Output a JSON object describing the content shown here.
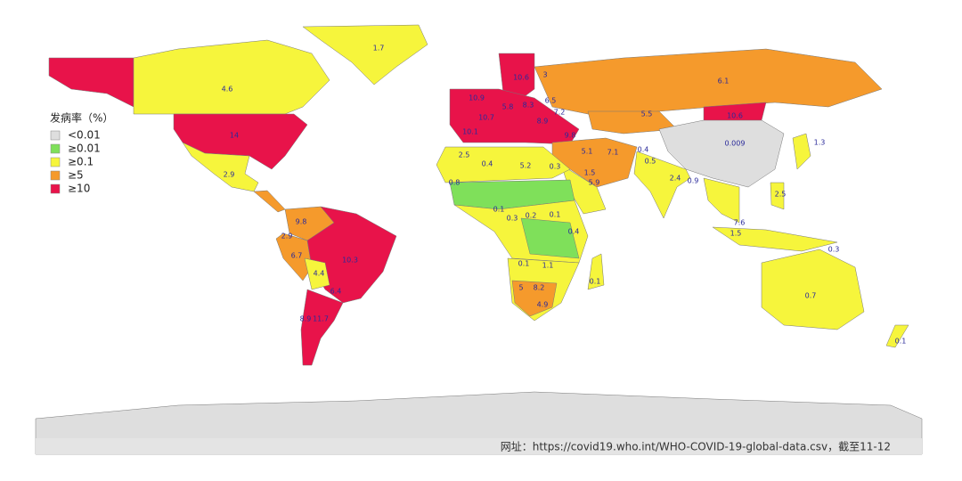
{
  "legend": {
    "title": "发病率（%）",
    "items": [
      {
        "label": "<0.01",
        "color": "#dedede"
      },
      {
        "label": "≥0.01",
        "color": "#7fe05a"
      },
      {
        "label": "≥0.1",
        "color": "#f6f53c"
      },
      {
        "label": "≥5",
        "color": "#f59a2c"
      },
      {
        "label": "≥10",
        "color": "#e8134a"
      }
    ]
  },
  "labels": [
    1.7,
    4.6,
    14,
    2.9,
    9.8,
    2.9,
    6.7,
    10.3,
    4.4,
    6.4,
    8.9,
    11.7,
    6.1,
    5.5,
    10.6,
    0.009,
    1.3,
    7.1,
    5.1,
    1.5,
    5.9,
    2.4,
    0.4,
    0.5,
    0.9,
    2.5,
    7.6,
    1.5,
    0.3,
    0.7,
    0.1,
    2.5,
    0.4,
    5.2,
    0.3,
    0.8,
    0.1,
    0.3,
    0.2,
    0.1,
    0.4,
    0.1,
    1.1,
    5,
    8.2,
    4.9,
    0.1,
    10.9,
    10.6,
    3,
    5.8,
    8.3,
    6.5,
    10.7,
    7.2,
    8.9,
    10.1,
    9.8
  ],
  "footer": "网址：https://covid19.who.int/WHO-COVID-19-global-data.csv，截至11-12"
}
